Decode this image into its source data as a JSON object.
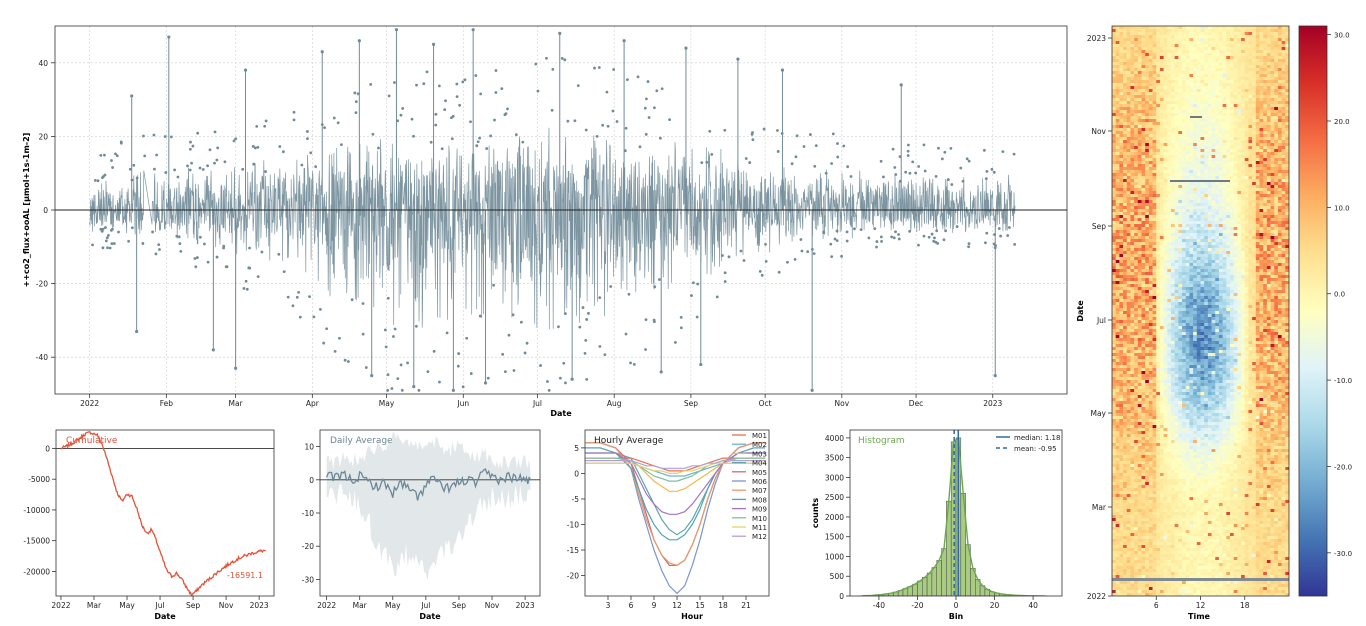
{
  "chart_data": [
    {
      "id": "timeseries",
      "type": "line",
      "title": "",
      "ylabel": "++co2_flux+ooAL [µmol+1s-1m-2]",
      "xlabel": "Date",
      "ylim": [
        -50,
        50
      ],
      "yticks": [
        -40,
        -20,
        0,
        20,
        40
      ],
      "xlim": [
        "2021-12-18",
        "2023-01-31"
      ],
      "xticks": [
        {
          "date": "2022-01-01",
          "label": "2022"
        },
        {
          "date": "2022-02-01",
          "label": "Feb"
        },
        {
          "date": "2022-03-01",
          "label": "Mar"
        },
        {
          "date": "2022-04-01",
          "label": "Apr"
        },
        {
          "date": "2022-05-01",
          "label": "May"
        },
        {
          "date": "2022-06-01",
          "label": "Jun"
        },
        {
          "date": "2022-07-01",
          "label": "Jul"
        },
        {
          "date": "2022-08-01",
          "label": "Aug"
        },
        {
          "date": "2022-09-01",
          "label": "Sep"
        },
        {
          "date": "2022-10-01",
          "label": "Oct"
        },
        {
          "date": "2022-11-01",
          "label": "Nov"
        },
        {
          "date": "2022-12-01",
          "label": "Dec"
        },
        {
          "date": "2023-01-01",
          "label": "2023"
        }
      ],
      "series_color": "#708b98",
      "envelope": {
        "date": [
          "2022-01-01",
          "2022-01-15",
          "2022-02-01",
          "2022-02-15",
          "2022-03-01",
          "2022-03-15",
          "2022-04-01",
          "2022-04-15",
          "2022-05-01",
          "2022-05-15",
          "2022-06-01",
          "2022-06-15",
          "2022-07-01",
          "2022-07-15",
          "2022-08-01",
          "2022-08-15",
          "2022-09-01",
          "2022-09-15",
          "2022-10-01",
          "2022-10-15",
          "2022-11-01",
          "2022-11-15",
          "2022-12-01",
          "2022-12-15",
          "2023-01-01",
          "2023-01-10"
        ],
        "upper": [
          7,
          8,
          9,
          9,
          10,
          11,
          12,
          14,
          16,
          16,
          15,
          16,
          18,
          18,
          16,
          15,
          14,
          12,
          10,
          9,
          9,
          8,
          8,
          7,
          7,
          7
        ],
        "lower": [
          -5,
          -5,
          -6,
          -8,
          -10,
          -12,
          -16,
          -20,
          -26,
          -28,
          -24,
          -22,
          -26,
          -24,
          -22,
          -20,
          -16,
          -12,
          -9,
          -7,
          -6,
          -5,
          -5,
          -5,
          -5,
          -5
        ]
      },
      "spikes": [
        {
          "date": "2022-02-02",
          "value": 47
        },
        {
          "date": "2022-05-05",
          "value": 49
        },
        {
          "date": "2022-05-20",
          "value": 45
        },
        {
          "date": "2022-06-05",
          "value": 49
        },
        {
          "date": "2022-07-10",
          "value": 48
        },
        {
          "date": "2022-08-05",
          "value": 46
        },
        {
          "date": "2022-08-30",
          "value": 44
        },
        {
          "date": "2022-09-20",
          "value": 41
        },
        {
          "date": "2022-10-08",
          "value": 38
        },
        {
          "date": "2022-11-25",
          "value": 34
        },
        {
          "date": "2022-01-18",
          "value": 31
        },
        {
          "date": "2022-03-05",
          "value": 38
        },
        {
          "date": "2022-04-05",
          "value": 43
        },
        {
          "date": "2022-04-20",
          "value": 46
        },
        {
          "date": "2022-05-28",
          "value": -49
        },
        {
          "date": "2022-05-12",
          "value": -48
        },
        {
          "date": "2022-06-10",
          "value": -47
        },
        {
          "date": "2022-07-15",
          "value": -46
        },
        {
          "date": "2022-08-20",
          "value": -44
        },
        {
          "date": "2022-10-20",
          "value": -49
        },
        {
          "date": "2022-03-01",
          "value": -43
        },
        {
          "date": "2022-02-20",
          "value": -38
        },
        {
          "date": "2023-01-02",
          "value": -45
        },
        {
          "date": "2022-01-20",
          "value": -33
        },
        {
          "date": "2022-09-05",
          "value": -42
        },
        {
          "date": "2022-04-25",
          "value": -45
        }
      ]
    },
    {
      "id": "cumulative",
      "type": "line",
      "title": "Cumulative",
      "xlabel": "Date",
      "ylim": [
        -24000,
        3000
      ],
      "yticks": [
        0,
        -5000,
        -10000,
        -15000,
        -20000
      ],
      "xticks": [
        "2022",
        "Mar",
        "May",
        "Jul",
        "Sep",
        "Nov",
        "2023"
      ],
      "annotation": "-16591.1",
      "color": "#e0533a",
      "x": [
        0,
        0.3,
        0.6,
        0.9,
        1.2,
        1.5,
        1.8,
        2.2,
        2.5,
        2.8,
        3.1,
        3.4,
        3.7,
        4.0,
        4.3,
        4.6,
        4.9,
        5.2,
        5.5,
        5.8,
        6.1,
        6.4,
        6.7,
        7.0,
        7.3,
        7.6,
        7.9,
        8.2,
        8.5,
        8.8,
        9.1,
        9.4,
        9.7,
        10.0,
        10.3,
        10.6,
        10.9,
        11.2,
        11.5,
        11.8,
        12.1,
        12.4
      ],
      "values": [
        0,
        300,
        700,
        1200,
        1800,
        2400,
        2600,
        2200,
        600,
        -1800,
        -4500,
        -7200,
        -8600,
        -7400,
        -7800,
        -9800,
        -12500,
        -13800,
        -13200,
        -15200,
        -17600,
        -19800,
        -20800,
        -20300,
        -21200,
        -22600,
        -23800,
        -23200,
        -22300,
        -21600,
        -21000,
        -20300,
        -19700,
        -19100,
        -18600,
        -18100,
        -17700,
        -17400,
        -17100,
        -16900,
        -16700,
        -16591
      ]
    },
    {
      "id": "daily-average",
      "type": "line",
      "title": "Daily Average",
      "xlabel": "Date",
      "ylim": [
        -35,
        15
      ],
      "yticks": [
        10,
        0,
        -10,
        -20,
        -30
      ],
      "xticks": [
        "2022",
        "Mar",
        "May",
        "Jul",
        "Sep",
        "Nov",
        "2023"
      ],
      "mean_color": "#6c8796",
      "band_color": "#dfe4e8",
      "x": [
        0,
        0.5,
        1,
        1.5,
        2,
        2.5,
        3,
        3.5,
        4,
        4.5,
        5,
        5.5,
        6,
        6.5,
        7,
        7.5,
        8,
        8.5,
        9,
        9.5,
        10,
        10.5,
        11,
        11.5,
        12,
        12.4
      ],
      "mean": [
        1,
        0.5,
        1.5,
        0,
        1,
        -0.5,
        -2,
        -1,
        -4,
        -1,
        -3,
        -5,
        -2,
        1,
        -3,
        -2,
        -1,
        0,
        -1,
        2,
        1,
        0,
        1,
        0.5,
        0,
        0
      ],
      "upper": [
        6,
        5,
        7,
        6,
        7,
        8,
        10,
        11,
        12,
        11,
        10,
        11,
        12,
        11,
        10,
        9,
        10,
        8,
        7,
        8,
        6,
        5,
        5,
        5,
        5,
        4
      ],
      "lower": [
        -4,
        -4,
        -5,
        -5,
        -7,
        -12,
        -18,
        -22,
        -28,
        -24,
        -22,
        -26,
        -28,
        -24,
        -22,
        -20,
        -18,
        -12,
        -10,
        -8,
        -6,
        -5,
        -5,
        -4,
        -4,
        -4
      ]
    },
    {
      "id": "hourly-average",
      "type": "line",
      "title": "Hourly Average",
      "xlabel": "Hour",
      "ylim": [
        -24,
        8.5
      ],
      "xlim": [
        0,
        24
      ],
      "yticks": [
        5,
        0,
        -5,
        -10,
        -15,
        -20
      ],
      "xticks": [
        3,
        6,
        9,
        12,
        15,
        18,
        21
      ],
      "hours": [
        0,
        2,
        4,
        6,
        7,
        8,
        9,
        10,
        11,
        12,
        13,
        14,
        15,
        16,
        17,
        18,
        20,
        22,
        23.5
      ],
      "series": [
        {
          "name": "M01",
          "color": "#e8714f",
          "values": [
            3,
            3,
            3,
            3,
            2.5,
            2,
            1.5,
            1,
            0.5,
            0.5,
            0.5,
            1,
            1.5,
            2,
            2.5,
            3,
            3,
            3,
            3
          ]
        },
        {
          "name": "M02",
          "color": "#6ab0d6",
          "values": [
            2,
            2,
            2,
            2,
            1.5,
            1,
            0.5,
            0,
            -0.5,
            -0.5,
            -0.5,
            0,
            0.5,
            1,
            1.5,
            2,
            2,
            2,
            2
          ]
        },
        {
          "name": "M03",
          "color": "#f2b94c",
          "values": [
            3,
            3,
            3,
            2.5,
            1.5,
            0,
            -1.5,
            -2.5,
            -3.5,
            -3.5,
            -3,
            -2,
            -1,
            0,
            1,
            2,
            3,
            3,
            3
          ]
        },
        {
          "name": "M04",
          "color": "#5ea8a3",
          "values": [
            4,
            4,
            4,
            3,
            0,
            -3,
            -6,
            -9,
            -11,
            -12,
            -11,
            -9,
            -6,
            -3,
            0,
            2,
            4,
            4,
            4
          ]
        },
        {
          "name": "M05",
          "color": "#d46a70",
          "values": [
            6,
            6,
            5,
            2,
            -3,
            -8,
            -13,
            -16,
            -18,
            -18,
            -17,
            -14,
            -10,
            -5,
            -1,
            2,
            5,
            6,
            6
          ]
        },
        {
          "name": "M06",
          "color": "#7a95d0",
          "values": [
            6,
            6,
            5,
            1,
            -5,
            -10,
            -15,
            -19,
            -22,
            -23.5,
            -22,
            -18,
            -13,
            -7,
            -2,
            2,
            5,
            6,
            6
          ]
        },
        {
          "name": "M07",
          "color": "#e69a6a",
          "values": [
            6,
            6,
            5,
            1,
            -4,
            -9,
            -13,
            -16,
            -17.5,
            -18,
            -17,
            -14,
            -10,
            -5,
            -1,
            2,
            5,
            6,
            6
          ]
        },
        {
          "name": "M08",
          "color": "#4fa5b8",
          "values": [
            5,
            5,
            4,
            1,
            -3,
            -7,
            -10,
            -12,
            -13,
            -13,
            -12,
            -10,
            -7,
            -3,
            0,
            2,
            4,
            5,
            5
          ]
        },
        {
          "name": "M09",
          "color": "#a574c4",
          "values": [
            4,
            4,
            4,
            2,
            -1,
            -4,
            -6,
            -7.5,
            -8,
            -8,
            -7.5,
            -6,
            -4,
            -2,
            0,
            2,
            4,
            4,
            4
          ]
        },
        {
          "name": "M10",
          "color": "#7fc0a2",
          "values": [
            3,
            3,
            3,
            2.5,
            1.5,
            0.5,
            -0.5,
            -1,
            -1.5,
            -1.5,
            -1,
            -0.5,
            0.5,
            1.5,
            2,
            2.5,
            3,
            3,
            3
          ]
        },
        {
          "name": "M11",
          "color": "#e6d36a",
          "values": [
            2,
            2,
            2,
            2,
            1.5,
            1,
            0.5,
            0.5,
            0,
            0,
            0.5,
            0.5,
            1,
            1.5,
            2,
            2,
            2,
            2,
            2
          ]
        },
        {
          "name": "M12",
          "color": "#b39ddb",
          "values": [
            2.5,
            2.5,
            2.5,
            2.5,
            2,
            1.5,
            1.5,
            1,
            1,
            1,
            1,
            1.5,
            1.5,
            2,
            2,
            2.5,
            2.5,
            2.5,
            2.5
          ]
        }
      ]
    },
    {
      "id": "histogram",
      "type": "bar",
      "title": "Histogram",
      "xlabel": "Bin",
      "ylabel": "counts",
      "xlim": [
        -55,
        55
      ],
      "ylim": [
        0,
        4200
      ],
      "xticks": [
        -40,
        -20,
        0,
        20,
        40
      ],
      "yticks": [
        0,
        500,
        1000,
        1500,
        2000,
        2500,
        3000,
        3500,
        4000
      ],
      "bar_color": "#a9cb82",
      "line_color": "#6aa84f",
      "median_color": "#2c6ba8",
      "legend": [
        {
          "label": "median: 1.18",
          "style": "solid",
          "value": 1.18
        },
        {
          "label": "mean: -0.95",
          "style": "dashed",
          "value": -0.95
        }
      ],
      "bin_width": 2.5,
      "bin_centers": [
        -48.75,
        -46.25,
        -43.75,
        -41.25,
        -38.75,
        -36.25,
        -33.75,
        -31.25,
        -28.75,
        -26.25,
        -23.75,
        -21.25,
        -18.75,
        -16.25,
        -13.75,
        -11.25,
        -8.75,
        -6.25,
        -3.75,
        -1.25,
        1.25,
        3.75,
        6.25,
        8.75,
        11.25,
        13.75,
        16.25,
        18.75,
        21.25,
        23.75,
        26.25,
        28.75,
        31.25,
        33.75,
        36.25,
        38.75,
        41.25,
        43.75,
        46.25
      ],
      "counts": [
        5,
        10,
        15,
        25,
        35,
        50,
        70,
        100,
        140,
        190,
        240,
        300,
        380,
        470,
        580,
        720,
        900,
        1200,
        2400,
        3900,
        4000,
        2600,
        1300,
        700,
        420,
        260,
        170,
        110,
        75,
        50,
        35,
        25,
        18,
        12,
        8,
        6,
        4,
        3,
        2
      ]
    },
    {
      "id": "heatmap",
      "type": "heatmap",
      "title": "",
      "xlabel": "Time",
      "ylabel": "Date",
      "xticks": [
        6,
        12,
        18
      ],
      "yticks": [
        "2023",
        "Nov",
        "Sep",
        "Jul",
        "May",
        "Mar",
        "2022"
      ],
      "colorbar": {
        "ticks": [
          "30.0",
          "20.0",
          "10.0",
          "0.0",
          "-10.0",
          "-20.0",
          "-30.0"
        ],
        "vmin": -35,
        "vmax": 31
      },
      "colormap": [
        "#313695",
        "#4575b4",
        "#74add1",
        "#abd9e9",
        "#e0f3f8",
        "#ffffbf",
        "#fee090",
        "#fdae61",
        "#f46d43",
        "#d73027",
        "#a50026"
      ]
    }
  ]
}
